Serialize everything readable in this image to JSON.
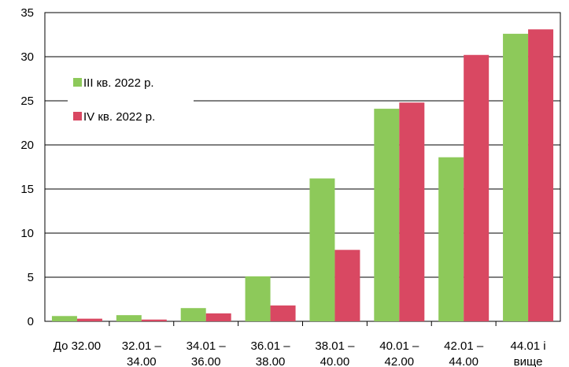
{
  "chart_data": {
    "type": "bar",
    "categories": [
      [
        "До 32.00"
      ],
      [
        "32.01 –",
        "34.00"
      ],
      [
        "34.01 –",
        "36.00"
      ],
      [
        "36.01 –",
        "38.00"
      ],
      [
        "38.01 –",
        "40.00"
      ],
      [
        "40.01 –",
        "42.00"
      ],
      [
        "42.01 –",
        "44.00"
      ],
      [
        "44.01 і",
        "вище"
      ]
    ],
    "series": [
      {
        "name": "III кв. 2022 р.",
        "color": "#8dc95a",
        "values": [
          0.6,
          0.7,
          1.5,
          5.1,
          16.2,
          24.1,
          18.6,
          32.6
        ]
      },
      {
        "name": "IV кв. 2022 р.",
        "color": "#d94862",
        "values": [
          0.3,
          0.2,
          0.9,
          1.8,
          8.1,
          24.8,
          30.2,
          33.1
        ]
      }
    ],
    "ylim": [
      0,
      35
    ],
    "yticks": [
      0,
      5,
      10,
      15,
      20,
      25,
      30,
      35
    ],
    "grid": true,
    "legend_position": "upper-left"
  }
}
